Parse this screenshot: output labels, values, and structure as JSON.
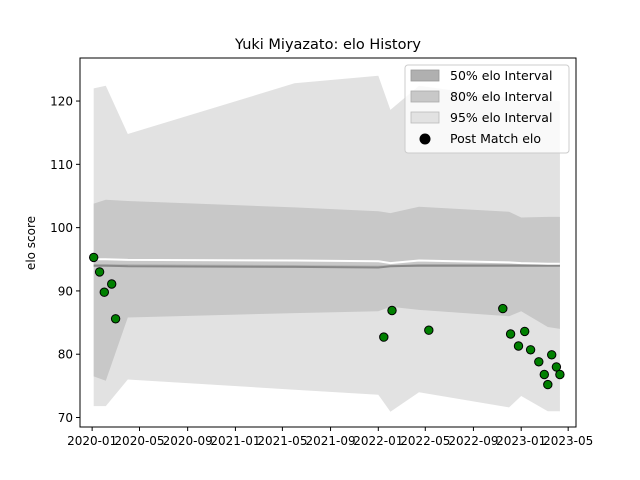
{
  "chart_data": {
    "type": "line",
    "title": "Yuki Miyazato: elo History",
    "xlabel": "",
    "ylabel": "elo score",
    "x_range": [
      "2019-12-01",
      "2023-05-21"
    ],
    "ylim": [
      68.5,
      126.8
    ],
    "x_ticks": [
      {
        "date": "2020-01-01",
        "label": "2020-01"
      },
      {
        "date": "2020-05-01",
        "label": "2020-05"
      },
      {
        "date": "2020-09-01",
        "label": "2020-09"
      },
      {
        "date": "2021-01-01",
        "label": "2021-01"
      },
      {
        "date": "2021-05-01",
        "label": "2021-05"
      },
      {
        "date": "2021-09-01",
        "label": "2021-09"
      },
      {
        "date": "2022-01-01",
        "label": "2022-01"
      },
      {
        "date": "2022-05-01",
        "label": "2022-05"
      },
      {
        "date": "2022-09-01",
        "label": "2022-09"
      },
      {
        "date": "2023-01-01",
        "label": "2023-01"
      },
      {
        "date": "2023-05-01",
        "label": "2023-05"
      }
    ],
    "y_ticks": [
      70,
      80,
      90,
      100,
      110,
      120
    ],
    "grid": false,
    "legend_position": "top-right",
    "legend": [
      {
        "label": "50% elo Interval",
        "kind": "band",
        "color": "#b0b0b0"
      },
      {
        "label": "80% elo Interval",
        "kind": "band",
        "color": "#c8c8c8"
      },
      {
        "label": "95% elo Interval",
        "kind": "band",
        "color": "#e2e2e2"
      },
      {
        "label": "Post Match elo",
        "kind": "marker",
        "color": "#000000"
      }
    ],
    "timeline": [
      {
        "x": "2020-01-05",
        "mean": 95.0,
        "median": 94.0,
        "p50": [
          93.8,
          94.2
        ],
        "p80": [
          76.5,
          103.8
        ],
        "p95": [
          71.8,
          122.0
        ]
      },
      {
        "x": "2020-02-05",
        "mean": 95.0,
        "median": 94.0,
        "p50": [
          93.8,
          94.2
        ],
        "p80": [
          75.8,
          104.4
        ],
        "p95": [
          71.8,
          122.4
        ]
      },
      {
        "x": "2020-04-01",
        "mean": 94.9,
        "median": 93.9,
        "p50": [
          93.8,
          94.2
        ],
        "p80": [
          85.8,
          104.2
        ],
        "p95": [
          76.0,
          114.8
        ]
      },
      {
        "x": "2021-06-01",
        "mean": 94.8,
        "median": 93.8,
        "p50": [
          93.7,
          94.1
        ],
        "p80": [
          86.5,
          103.2
        ],
        "p95": [
          74.4,
          122.8
        ]
      },
      {
        "x": "2022-01-01",
        "mean": 94.7,
        "median": 93.7,
        "p50": [
          93.6,
          94.0
        ],
        "p80": [
          86.8,
          102.6
        ],
        "p95": [
          73.6,
          124.0
        ]
      },
      {
        "x": "2022-02-01",
        "mean": 94.4,
        "median": 93.9,
        "p50": [
          93.8,
          94.1
        ],
        "p80": [
          87.5,
          102.3
        ],
        "p95": [
          70.9,
          118.6
        ]
      },
      {
        "x": "2022-04-15",
        "mean": 94.8,
        "median": 94.0,
        "p50": [
          93.8,
          94.2
        ],
        "p80": [
          87.0,
          103.3
        ],
        "p95": [
          74.0,
          122.4
        ]
      },
      {
        "x": "2022-12-01",
        "mean": 94.5,
        "median": 94.0,
        "p50": [
          93.8,
          94.2
        ],
        "p80": [
          86.0,
          102.5
        ],
        "p95": [
          71.6,
          120.5
        ]
      },
      {
        "x": "2023-01-01",
        "mean": 94.4,
        "median": 94.0,
        "p50": [
          93.8,
          94.2
        ],
        "p80": [
          86.8,
          101.6
        ],
        "p95": [
          73.4,
          119.8
        ]
      },
      {
        "x": "2023-03-10",
        "mean": 94.3,
        "median": 94.0,
        "p50": [
          93.8,
          94.2
        ],
        "p80": [
          84.3,
          101.7
        ],
        "p95": [
          71.0,
          120.2
        ]
      },
      {
        "x": "2023-04-10",
        "mean": 94.3,
        "median": 94.0,
        "p50": [
          93.8,
          94.2
        ],
        "p80": [
          84.0,
          101.7
        ],
        "p95": [
          71.0,
          120.0
        ]
      }
    ],
    "series": [
      {
        "name": "Post Match elo",
        "marker": "circle",
        "fill": "#008000",
        "edge": "#000000",
        "points": [
          {
            "x": "2020-01-05",
            "y": 95.3
          },
          {
            "x": "2020-01-20",
            "y": 93.0
          },
          {
            "x": "2020-02-01",
            "y": 89.8
          },
          {
            "x": "2020-02-20",
            "y": 91.1
          },
          {
            "x": "2020-03-01",
            "y": 85.6
          },
          {
            "x": "2022-01-15",
            "y": 82.7
          },
          {
            "x": "2022-02-05",
            "y": 86.9
          },
          {
            "x": "2022-05-10",
            "y": 83.8
          },
          {
            "x": "2022-11-15",
            "y": 87.2
          },
          {
            "x": "2022-12-05",
            "y": 83.2
          },
          {
            "x": "2022-12-25",
            "y": 81.3
          },
          {
            "x": "2023-01-10",
            "y": 83.6
          },
          {
            "x": "2023-01-25",
            "y": 80.7
          },
          {
            "x": "2023-02-15",
            "y": 78.8
          },
          {
            "x": "2023-03-01",
            "y": 76.8
          },
          {
            "x": "2023-03-10",
            "y": 75.2
          },
          {
            "x": "2023-03-20",
            "y": 79.9
          },
          {
            "x": "2023-04-01",
            "y": 78.0
          },
          {
            "x": "2023-04-10",
            "y": 76.8
          }
        ]
      }
    ],
    "colors": {
      "band95": "#e2e2e2",
      "band80": "#c8c8c8",
      "band50": "#b0b0b0",
      "mean_line": "#ffffff",
      "median_line": "#888888"
    }
  }
}
